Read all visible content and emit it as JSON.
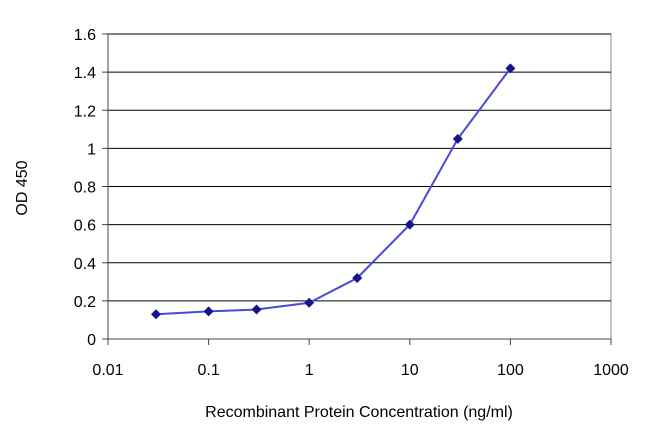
{
  "chart_data": {
    "type": "line",
    "xlabel": "Recombinant Protein Concentration (ng/ml)",
    "ylabel": "OD 450",
    "xscale": "log",
    "xlim": [
      0.01,
      1000
    ],
    "ylim": [
      0,
      1.6
    ],
    "xticks": [
      {
        "value": 0.01,
        "label": "0.01"
      },
      {
        "value": 0.1,
        "label": "0.1"
      },
      {
        "value": 1,
        "label": "1"
      },
      {
        "value": 10,
        "label": "10"
      },
      {
        "value": 100,
        "label": "100"
      },
      {
        "value": 1000,
        "label": "1000"
      }
    ],
    "yticks": [
      {
        "value": 0,
        "label": "0"
      },
      {
        "value": 0.2,
        "label": "0.2"
      },
      {
        "value": 0.4,
        "label": "0.4"
      },
      {
        "value": 0.6,
        "label": "0.6"
      },
      {
        "value": 0.8,
        "label": "0.8"
      },
      {
        "value": 1.0,
        "label": "1"
      },
      {
        "value": 1.2,
        "label": "1.2"
      },
      {
        "value": 1.4,
        "label": "1.4"
      },
      {
        "value": 1.6,
        "label": "1.6"
      }
    ],
    "grid": {
      "horizontal": true,
      "vertical": false
    },
    "legend": "none",
    "colors": {
      "series": "#4a4ad6",
      "marker": "#14148c",
      "grid": "#000000",
      "frame": "#888888"
    },
    "series": [
      {
        "x": [
          0.03,
          0.1,
          0.3,
          1,
          3,
          10,
          30,
          100
        ],
        "y": [
          0.13,
          0.145,
          0.155,
          0.19,
          0.32,
          0.6,
          1.05,
          1.42
        ]
      }
    ]
  }
}
